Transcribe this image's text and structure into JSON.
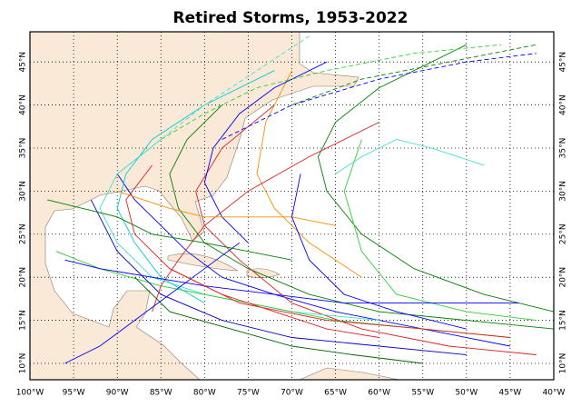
{
  "chart_data": {
    "type": "map",
    "title": "Retired Storms, 1953-2022",
    "xlim": [
      -100,
      -40
    ],
    "ylim": [
      8.1,
      48.5
    ],
    "xticks": [
      {
        "value": -100,
        "label": "100°W"
      },
      {
        "value": -95,
        "label": "95°W"
      },
      {
        "value": -90,
        "label": "90°W"
      },
      {
        "value": -85,
        "label": "85°W"
      },
      {
        "value": -80,
        "label": "80°W"
      },
      {
        "value": -75,
        "label": "75°W"
      },
      {
        "value": -70,
        "label": "70°W"
      },
      {
        "value": -65,
        "label": "65°W"
      },
      {
        "value": -60,
        "label": "60°W"
      },
      {
        "value": -55,
        "label": "55°W"
      },
      {
        "value": -50,
        "label": "50°W"
      },
      {
        "value": -45,
        "label": "45°W"
      },
      {
        "value": -40,
        "label": "40°W"
      }
    ],
    "yticks": [
      {
        "value": 10,
        "label": "10°N"
      },
      {
        "value": 15,
        "label": "15°N"
      },
      {
        "value": 20,
        "label": "20°N"
      },
      {
        "value": 25,
        "label": "25°N"
      },
      {
        "value": 30,
        "label": "30°N"
      },
      {
        "value": 35,
        "label": "35°N"
      },
      {
        "value": 40,
        "label": "40°N"
      },
      {
        "value": 45,
        "label": "45°N"
      }
    ],
    "grid": true,
    "tracks": [
      {
        "color": "#0000ff",
        "dashed": false,
        "lon": [
          -45,
          -55,
          -65,
          -72,
          -78,
          -82,
          -85,
          -88,
          -90
        ],
        "lat": [
          12,
          14,
          16,
          18,
          20,
          23,
          26,
          29,
          32
        ]
      },
      {
        "color": "#008000",
        "dashed": false,
        "lon": [
          -40,
          -50,
          -60,
          -68,
          -75,
          -80,
          -83,
          -84,
          -82,
          -78
        ],
        "lat": [
          14,
          15,
          16,
          18,
          21,
          24,
          28,
          32,
          36,
          40
        ]
      },
      {
        "color": "#e02020",
        "dashed": false,
        "lon": [
          -42,
          -52,
          -62,
          -70,
          -76,
          -80,
          -81,
          -78,
          -72
        ],
        "lat": [
          11,
          12,
          14,
          17,
          22,
          26,
          30,
          35,
          40
        ]
      },
      {
        "color": "#40e0d0",
        "dashed": false,
        "lon": [
          -60,
          -70,
          -80,
          -86,
          -90,
          -92,
          -90,
          -85
        ],
        "lat": [
          15,
          16,
          18,
          20,
          24,
          28,
          32,
          36
        ]
      },
      {
        "color": "#ff8c00",
        "dashed": false,
        "lon": [
          -62,
          -68,
          -72,
          -74,
          -73,
          -70
        ],
        "lat": [
          20,
          24,
          28,
          32,
          38,
          44
        ]
      },
      {
        "color": "#32cd32",
        "dashed": false,
        "lon": [
          -45,
          -55,
          -65,
          -75,
          -85,
          -92,
          -97
        ],
        "lat": [
          13,
          14,
          15,
          17,
          19,
          21,
          23
        ]
      },
      {
        "color": "#0000ff",
        "dashed": false,
        "lon": [
          -75,
          -78,
          -80,
          -79,
          -76,
          -72,
          -66
        ],
        "lat": [
          24,
          27,
          31,
          35,
          39,
          42,
          45
        ]
      },
      {
        "color": "#008000",
        "dashed": false,
        "lon": [
          -40,
          -48,
          -56,
          -62,
          -66,
          -67,
          -65,
          -60,
          -50
        ],
        "lat": [
          16,
          18,
          21,
          25,
          30,
          34,
          38,
          42,
          47
        ]
      },
      {
        "color": "#0000cd",
        "dashed": false,
        "lon": [
          -50,
          -60,
          -70,
          -78,
          -85,
          -90,
          -93
        ],
        "lat": [
          11,
          12,
          13,
          15,
          18,
          23,
          29
        ]
      },
      {
        "color": "#e02020",
        "dashed": false,
        "lon": [
          -86,
          -85,
          -83,
          -80,
          -75,
          -68,
          -60
        ],
        "lat": [
          16,
          19,
          22,
          26,
          30,
          34,
          38
        ]
      },
      {
        "color": "#00ced1",
        "dashed": false,
        "lon": [
          -80,
          -85,
          -88,
          -90,
          -89,
          -86,
          -80,
          -72
        ],
        "lat": [
          17,
          20,
          24,
          28,
          32,
          36,
          40,
          44
        ]
      },
      {
        "color": "#32cd32",
        "dashed": true,
        "lon": [
          -85,
          -80,
          -74,
          -66,
          -56,
          -46
        ],
        "lat": [
          36,
          39,
          42,
          44,
          46,
          47
        ]
      },
      {
        "color": "#0000ff",
        "dashed": true,
        "lon": [
          -78,
          -70,
          -60,
          -50,
          -42
        ],
        "lat": [
          36,
          40,
          43,
          45,
          46
        ]
      },
      {
        "color": "#006400",
        "dashed": false,
        "lon": [
          -55,
          -63,
          -70,
          -77,
          -84,
          -88
        ],
        "lat": [
          10,
          11,
          12,
          14,
          16,
          20
        ]
      },
      {
        "color": "#e02020",
        "dashed": false,
        "lon": [
          -60,
          -66,
          -72,
          -78,
          -84
        ],
        "lat": [
          13,
          14,
          16,
          18,
          21
        ]
      },
      {
        "color": "#0000ff",
        "dashed": false,
        "lon": [
          -96,
          -92,
          -88,
          -84,
          -80,
          -76
        ],
        "lat": [
          10,
          12,
          15,
          18,
          21,
          24
        ]
      },
      {
        "color": "#ff8c00",
        "dashed": false,
        "lon": [
          -65,
          -70,
          -75,
          -80,
          -84,
          -87,
          -90
        ],
        "lat": [
          26,
          27,
          27,
          27,
          28,
          29,
          30
        ]
      },
      {
        "color": "#32cd32",
        "dashed": false,
        "lon": [
          -42,
          -50,
          -58,
          -62,
          -64,
          -62
        ],
        "lat": [
          15,
          16,
          18,
          23,
          30,
          36
        ]
      },
      {
        "color": "#40e0d0",
        "dashed": true,
        "lon": [
          -90,
          -85,
          -80,
          -74,
          -68
        ],
        "lat": [
          32,
          36,
          40,
          44,
          48
        ]
      },
      {
        "color": "#0000ff",
        "dashed": false,
        "lon": [
          -44,
          -54,
          -64,
          -72,
          -80,
          -86,
          -92,
          -96
        ],
        "lat": [
          17,
          17,
          17,
          18,
          19,
          20,
          21,
          22
        ]
      },
      {
        "color": "#008000",
        "dashed": false,
        "lon": [
          -70,
          -75,
          -80,
          -86,
          -90,
          -94,
          -98
        ],
        "lat": [
          22,
          23,
          24,
          25,
          27,
          28,
          29
        ]
      },
      {
        "color": "#e02020",
        "dashed": false,
        "lon": [
          -45,
          -55,
          -66,
          -76,
          -84,
          -88,
          -89,
          -86
        ],
        "lat": [
          13,
          14,
          15,
          17,
          21,
          25,
          29,
          33
        ]
      },
      {
        "color": "#40e0d0",
        "dashed": false,
        "lon": [
          -65,
          -62,
          -58,
          -54,
          -48
        ],
        "lat": [
          32,
          34,
          36,
          35,
          33
        ]
      },
      {
        "color": "#0000ff",
        "dashed": false,
        "lon": [
          -50,
          -58,
          -64,
          -68,
          -70,
          -69
        ],
        "lat": [
          14,
          16,
          18,
          22,
          27,
          32
        ]
      },
      {
        "color": "#008000",
        "dashed": true,
        "lon": [
          -70,
          -62,
          -52,
          -42
        ],
        "lat": [
          40,
          43,
          45,
          47
        ]
      }
    ]
  }
}
